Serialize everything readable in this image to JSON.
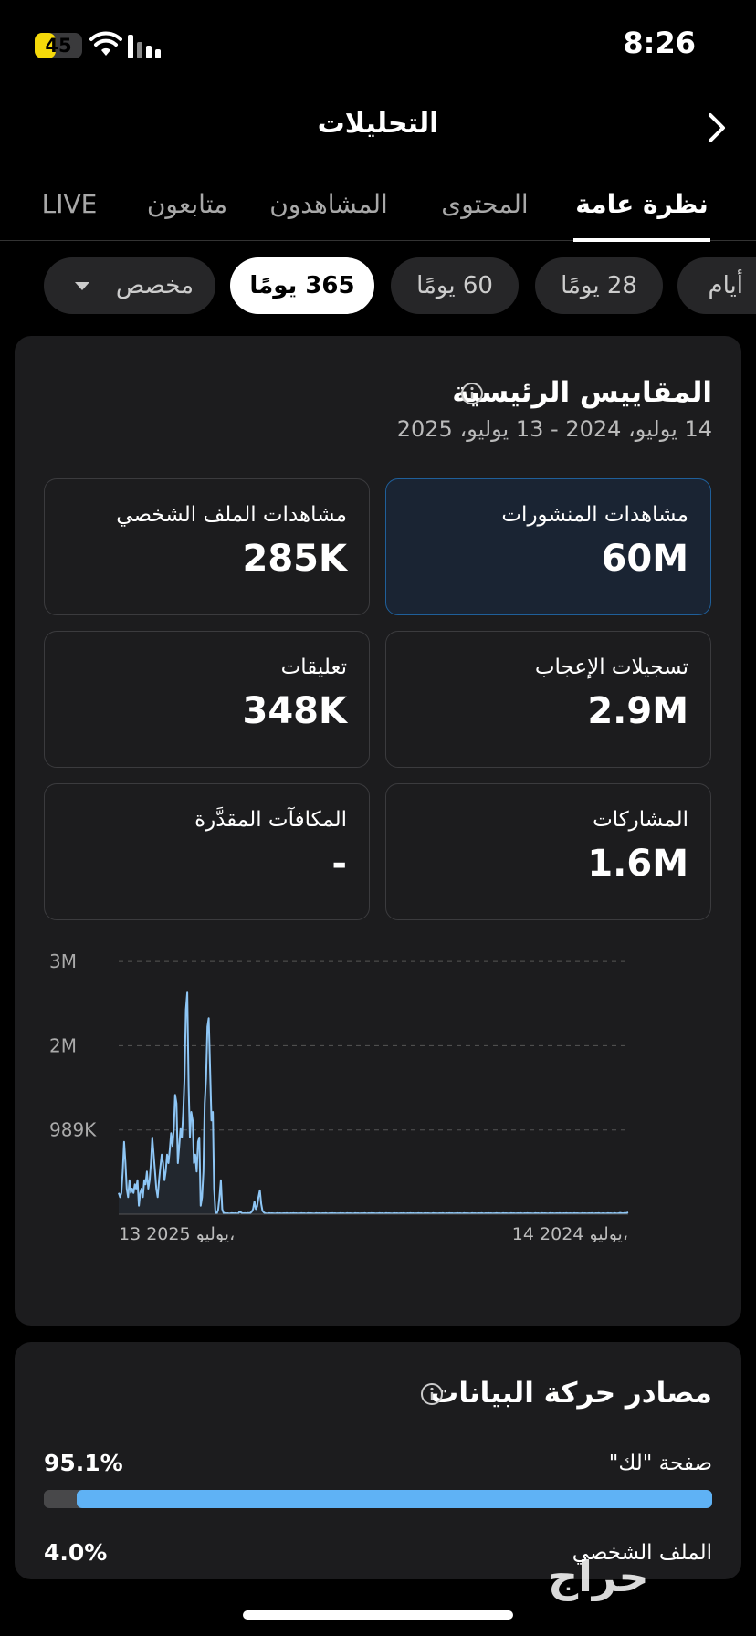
{
  "status_bar": {
    "battery": "45",
    "battery_level": 0.45,
    "time": "8:26"
  },
  "header": {
    "title": "التحليلات"
  },
  "tabs": [
    {
      "label": "نظرة عامة",
      "active": true
    },
    {
      "label": "المحتوى",
      "active": false
    },
    {
      "label": "المشاهدون",
      "active": false
    },
    {
      "label": "متابعون",
      "active": false
    },
    {
      "label": "LIVE",
      "active": false
    }
  ],
  "period_chips": [
    {
      "label": "أيام",
      "active": false
    },
    {
      "label": "28 يومًا",
      "active": false
    },
    {
      "label": "60 يومًا",
      "active": false
    },
    {
      "label": "365 يومًا",
      "active": true
    },
    {
      "label": "مخصص",
      "active": false
    }
  ],
  "key_metrics": {
    "title": "المقاييس الرئيسية",
    "date_range": "14 يوليو، 2024 - 13 يوليو، 2025",
    "items": [
      {
        "label": "مشاهدات المنشورات",
        "value": "60M",
        "selected": true
      },
      {
        "label": "مشاهدات الملف الشخصي",
        "value": "285K",
        "selected": false
      },
      {
        "label": "تسجيلات الإعجاب",
        "value": "2.9M",
        "selected": false
      },
      {
        "label": "تعليقات",
        "value": "348K",
        "selected": false
      },
      {
        "label": "المشاركات",
        "value": "1.6M",
        "selected": false
      },
      {
        "label": "المكافآت المقدَّرة",
        "value": "-",
        "selected": false
      }
    ]
  },
  "chart_data": {
    "type": "line",
    "y_ticks": [
      "3M",
      "2M",
      "989K"
    ],
    "y_tick_values": [
      2967000,
      1978000,
      989000
    ],
    "ylim": [
      0,
      3000000
    ],
    "x_start_label": "14 2024 يوليو،",
    "x_end_label": "13 2025 يوليو،",
    "grid": true,
    "series": [
      {
        "color": "#8ec6f5",
        "x_order": "right-to-left",
        "values": [
          20000,
          15000,
          12000,
          13000,
          10000,
          12000,
          15000,
          11000,
          9000,
          10000,
          12000,
          10000,
          9000,
          11000,
          10000,
          12000,
          10000,
          9000,
          10000,
          11000,
          9000,
          10000,
          12000,
          10000,
          11000,
          9000,
          10000,
          12000,
          10000,
          11000,
          10000,
          9000,
          11000,
          10000,
          12000,
          10000,
          9000,
          10000,
          11000,
          10000,
          12000,
          10000,
          9000,
          11000,
          10000,
          10000,
          12000,
          10000,
          11000,
          9000,
          10000,
          12000,
          10000,
          11000,
          10000,
          9000,
          11000,
          10000,
          12000,
          10000,
          9000,
          10000,
          11000,
          10000,
          12000,
          10000,
          9000,
          11000,
          10000,
          12000,
          10000,
          9000,
          10000,
          11000,
          10000,
          12000,
          10000,
          11000,
          9000,
          10000,
          12000,
          10000,
          11000,
          10000,
          9000,
          11000,
          10000,
          12000,
          10000,
          9000,
          10000,
          11000,
          10000,
          12000,
          10000,
          9000,
          11000,
          10000,
          12000,
          10000,
          10000,
          9000,
          11000,
          10000,
          12000,
          10000,
          11000,
          9000,
          10000,
          12000,
          10000,
          11000,
          10000,
          9000,
          11000,
          10000,
          12000,
          10000,
          9000,
          10000,
          11000,
          10000,
          12000,
          10000,
          9000,
          11000,
          10000,
          12000,
          10000,
          10000,
          9000,
          11000,
          10000,
          12000,
          10000,
          11000,
          9000,
          10000,
          12000,
          10000,
          11000,
          10000,
          9000,
          11000,
          10000,
          12000,
          10000,
          9000,
          10000,
          11000,
          10000,
          12000,
          10000,
          9000,
          11000,
          10000,
          12000,
          10000,
          10000,
          9000,
          11000,
          10000,
          12000,
          10000,
          11000,
          9000,
          10000,
          12000,
          10000,
          11000,
          10000,
          9000,
          11000,
          10000,
          12000,
          10000,
          9000,
          10000,
          11000,
          10000,
          12000,
          10000,
          9000,
          11000,
          10000,
          12000,
          10000,
          10000,
          9000,
          11000,
          10000,
          12000,
          10000,
          11000,
          9000,
          10000,
          12000,
          10000,
          11000,
          10000,
          9000,
          11000,
          10000,
          12000,
          10000,
          9000,
          10000,
          11000,
          10000,
          12000,
          10000,
          9000,
          11000,
          10000,
          12000,
          10000,
          10000,
          9000,
          11000,
          10000,
          12000,
          10000,
          11000,
          9000,
          10000,
          12000,
          10000,
          11000,
          10000,
          9000,
          11000,
          10000,
          12000,
          10000,
          9000,
          10000,
          11000,
          10000,
          12000,
          10000,
          9000,
          11000,
          10000,
          12000,
          10000,
          10000,
          9000,
          11000,
          10000,
          12000,
          10000,
          11000,
          9000,
          10000,
          12000,
          10000,
          11000,
          10000,
          9000,
          11000,
          10000,
          12000,
          10000,
          9000,
          10000,
          11000,
          10000,
          12000,
          10000,
          9000,
          11000,
          20000,
          40000,
          120000,
          280000,
          200000,
          90000,
          60000,
          150000,
          60000,
          30000,
          15000,
          12000,
          14000,
          10000,
          12000,
          11000,
          10000,
          20000,
          30000,
          10000,
          9000,
          12000,
          10000,
          11000,
          12000,
          10000,
          9000,
          11000,
          10000,
          12000,
          15000,
          60000,
          400000,
          200000,
          50000,
          10000,
          15000,
          300000,
          1200000,
          1100000,
          1700000,
          2300000,
          2200000,
          1600000,
          1300000,
          500000,
          200000,
          100000,
          900000,
          850000,
          500000,
          700000,
          600000,
          1100000,
          1200000,
          900000,
          1500000,
          2600000,
          2400000,
          1600000,
          1200000,
          900000,
          1000000,
          800000,
          600000,
          1300000,
          1400000,
          1000000,
          800000,
          950000,
          750000,
          600000,
          700000,
          500000,
          400000,
          600000,
          700000,
          550000,
          400000,
          200000,
          300000,
          500000,
          700000,
          900000,
          600000,
          400000,
          300000,
          500000,
          350000,
          400000,
          200000,
          300000,
          250000,
          100000,
          400000,
          300000,
          350000,
          250000,
          300000,
          250000,
          400000,
          200000,
          300000,
          600000,
          850000,
          500000,
          250000,
          200000,
          250000
        ]
      }
    ]
  },
  "traffic_sources": {
    "title": "مصادر حركة البيانات",
    "items": [
      {
        "name": "صفحة \"لك\"",
        "percent": "95.1%",
        "fraction": 0.951
      },
      {
        "name": "الملف الشخصي",
        "percent": "4.0%",
        "fraction": 0.04
      }
    ]
  },
  "watermark": "حراج"
}
